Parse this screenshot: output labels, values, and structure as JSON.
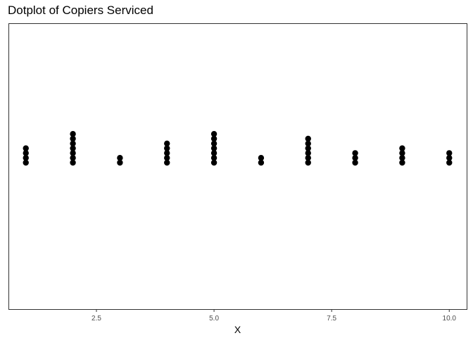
{
  "chart_data": {
    "type": "scatter",
    "title": "Dotplot of Copiers Serviced",
    "xlabel": "X",
    "ylabel": "",
    "xlim": [
      0.63,
      10.37
    ],
    "x_ticks": [
      2.5,
      5.0,
      7.5,
      10.0
    ],
    "x_tick_labels": [
      "2.5",
      "5.0",
      "7.5",
      "10.0"
    ],
    "grid": false,
    "legend": "none",
    "dot_color": "#000000",
    "values": [
      1,
      2,
      3,
      4,
      5,
      6,
      7,
      8,
      9,
      10
    ],
    "counts": [
      4,
      7,
      2,
      5,
      7,
      2,
      6,
      3,
      4,
      3
    ]
  }
}
